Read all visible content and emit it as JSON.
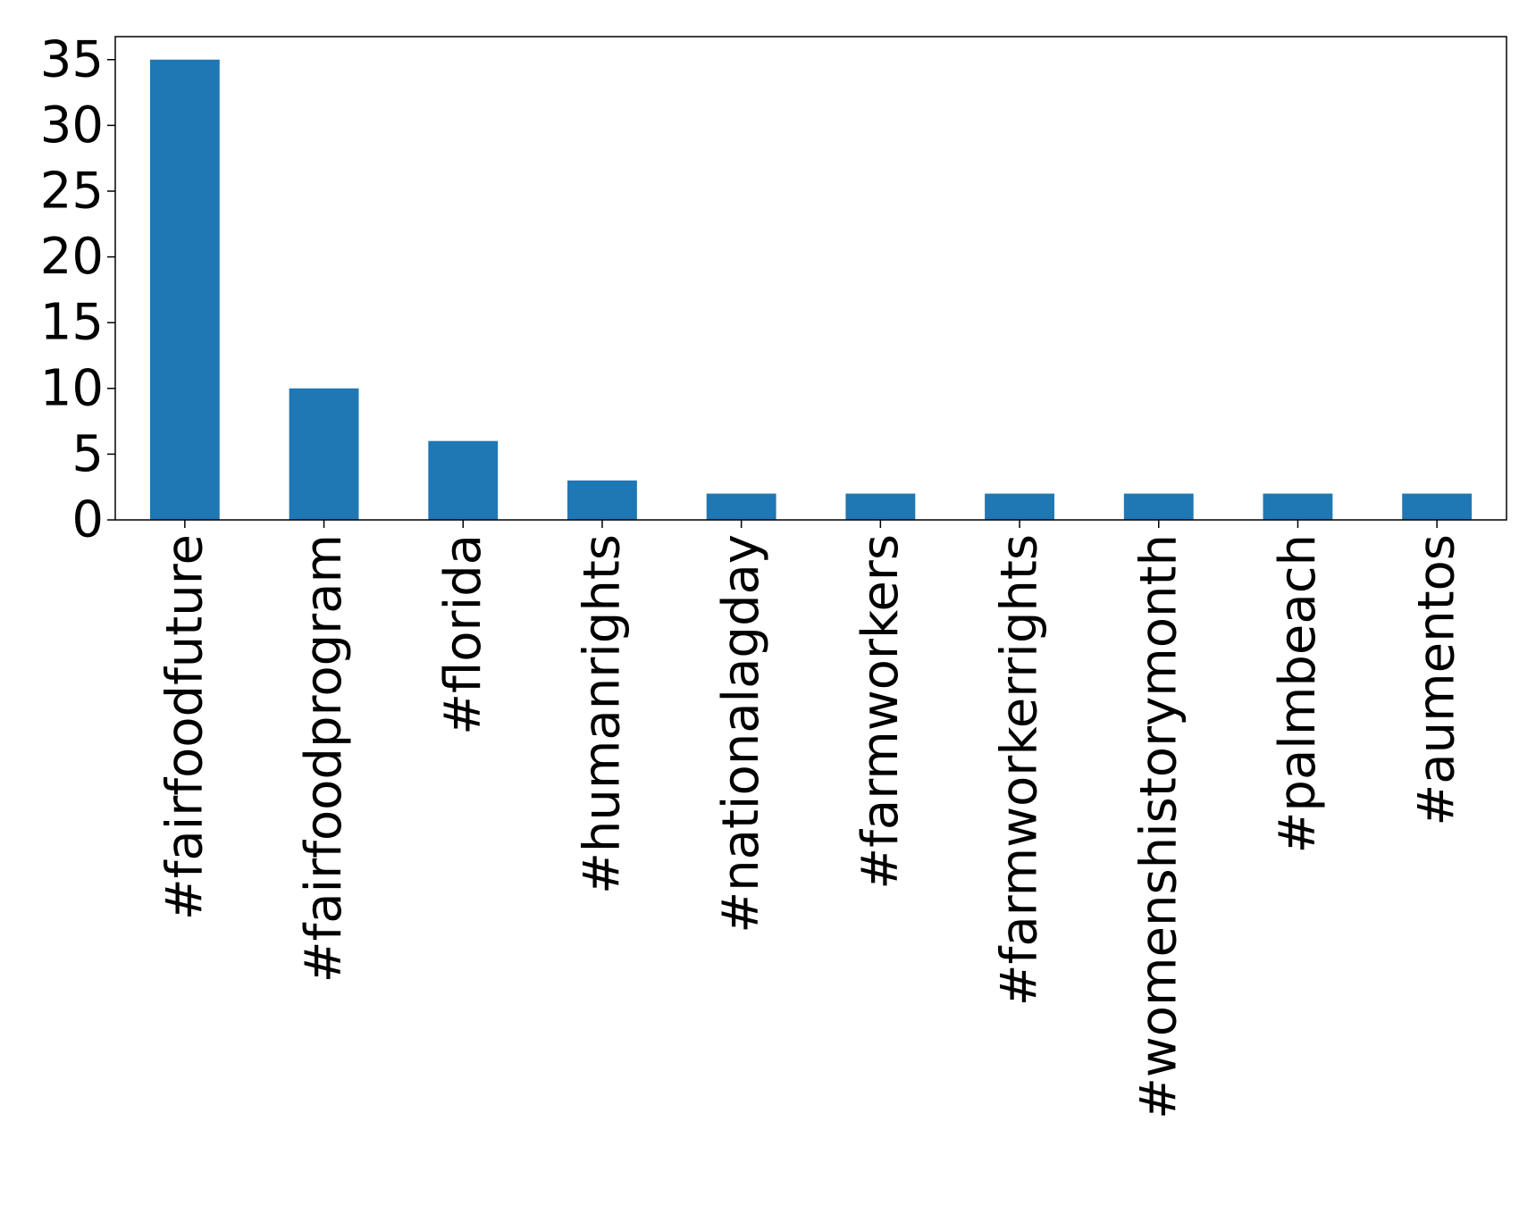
{
  "chart_data": {
    "type": "bar",
    "title": "",
    "xlabel": "",
    "ylabel": "",
    "categories": [
      "#fairfoodfuture",
      "#fairfoodprogram",
      "#florida",
      "#humanrights",
      "#nationalagday",
      "#farmworkers",
      "#farmworkerrights",
      "#womenshistorymonth",
      "#palmbeach",
      "#aumentos"
    ],
    "values": [
      35,
      10,
      6,
      3,
      2,
      2,
      2,
      2,
      2,
      2
    ],
    "ylim": [
      0,
      36.75
    ],
    "yticks": [
      0,
      5,
      10,
      15,
      20,
      25,
      30,
      35
    ],
    "grid": false,
    "legend": "none",
    "bar_color": "#1f77b4"
  }
}
